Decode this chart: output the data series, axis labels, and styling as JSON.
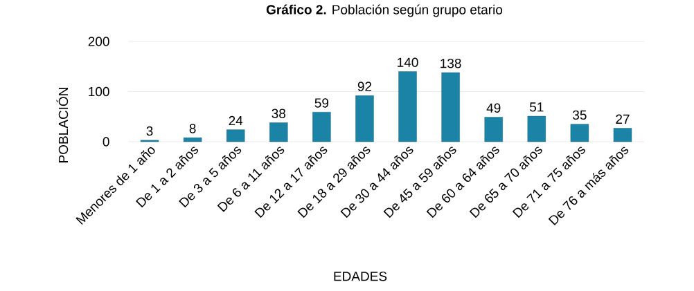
{
  "chart_data": {
    "type": "bar",
    "title": "**Gráfico 2.** Población según grupo etario",
    "xlabel": "EDADES",
    "ylabel": "POBLACIÓN",
    "categories": [
      "Menores de 1 año",
      "De 1 a 2 años",
      "De 3 a 5 años",
      "De 6 a 11 años",
      "De 12 a 17 años",
      "De 18 a 29 años",
      "De 30 a 44 años",
      "De 45 a 59 años",
      "De 60 a 64 años",
      "De 65 a 70 años",
      "De 71 a 75 años",
      "De 76 a más años"
    ],
    "values": [
      3,
      8,
      24,
      38,
      59,
      92,
      140,
      138,
      49,
      51,
      35,
      27
    ],
    "color": "#1b84a6",
    "ylim": [
      0,
      200
    ],
    "yticks": [
      0,
      100,
      200
    ],
    "grid": "y",
    "data_labels": true
  }
}
